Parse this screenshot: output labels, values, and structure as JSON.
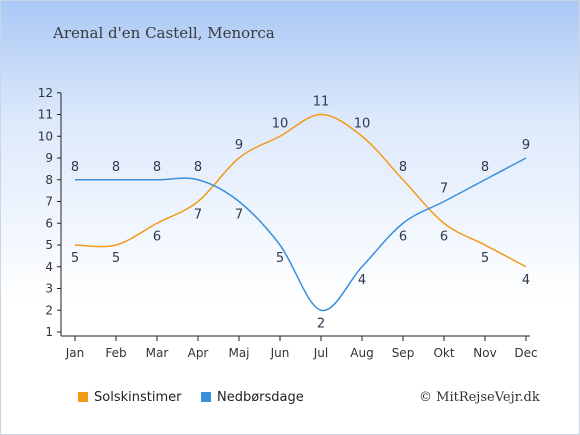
{
  "title": "Arenal d'en Castell, Menorca",
  "chart_data": {
    "type": "line",
    "categories": [
      "Jan",
      "Feb",
      "Mar",
      "Apr",
      "Maj",
      "Jun",
      "Jul",
      "Aug",
      "Sep",
      "Okt",
      "Nov",
      "Dec"
    ],
    "series": [
      {
        "name": "Solskinstimer",
        "color": "#f29a1a",
        "values": [
          5,
          5,
          6,
          7,
          9,
          10,
          11,
          10,
          8,
          6,
          5,
          4
        ]
      },
      {
        "name": "Nedbørsdage",
        "color": "#3a8fdc",
        "values": [
          8,
          8,
          8,
          8,
          7,
          5,
          2,
          4,
          6,
          7,
          8,
          9
        ]
      }
    ],
    "yticks": [
      1,
      2,
      3,
      4,
      5,
      6,
      7,
      8,
      9,
      10,
      11,
      12
    ],
    "ylim": [
      1,
      12
    ],
    "legend_position": "bottom-left",
    "grid": false
  },
  "copyright": "© MitRejseVejr.dk"
}
